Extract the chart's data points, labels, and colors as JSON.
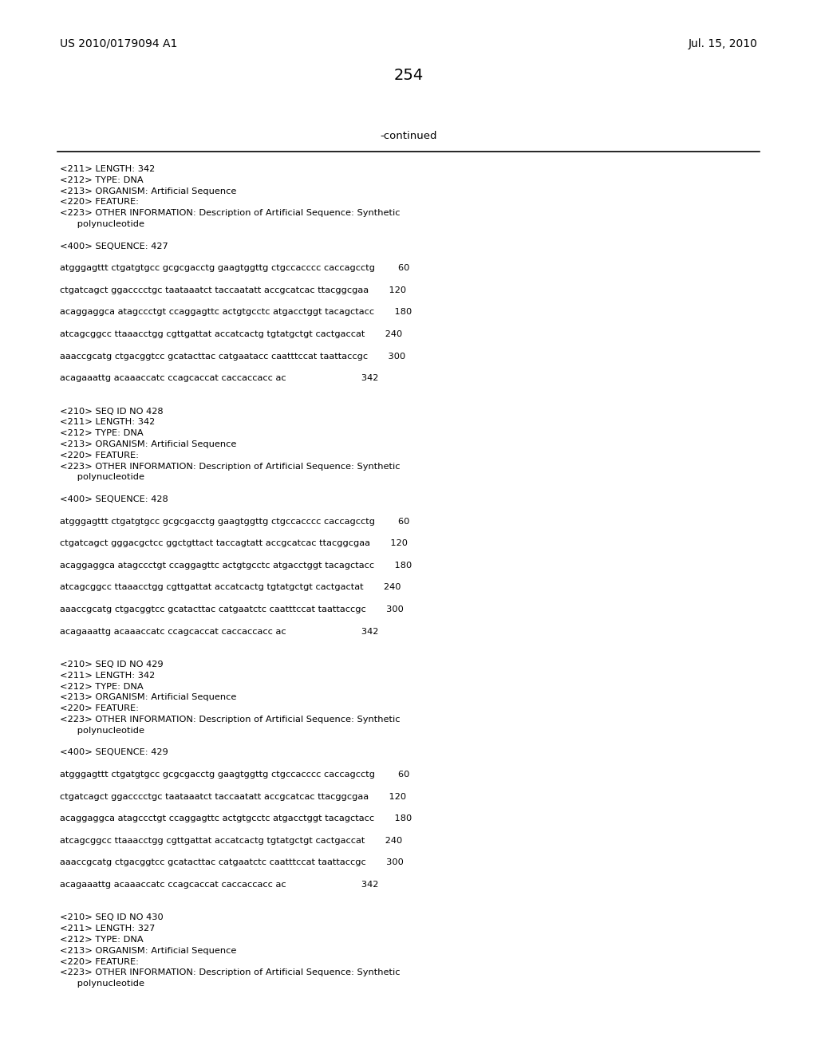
{
  "background_color": "#ffffff",
  "page_number": "254",
  "header_left": "US 2010/0179094 A1",
  "header_right": "Jul. 15, 2010",
  "continued_label": "-continued",
  "content_lines": [
    "<211> LENGTH: 342",
    "<212> TYPE: DNA",
    "<213> ORGANISM: Artificial Sequence",
    "<220> FEATURE:",
    "<223> OTHER INFORMATION: Description of Artificial Sequence: Synthetic",
    "      polynucleotide",
    "",
    "<400> SEQUENCE: 427",
    "",
    "atgggagttt ctgatgtgcc gcgcgacctg gaagtggttg ctgccacccc caccagcctg        60",
    "",
    "ctgatcagct ggacccctgc taataaatct taccaatatt accgcatcac ttacggcgaa       120",
    "",
    "acaggaggca atagccctgt ccaggagttc actgtgcctc atgacctggt tacagctacc       180",
    "",
    "atcagcggcc ttaaacctgg cgttgattat accatcactg tgtatgctgt cactgaccat       240",
    "",
    "aaaccgcatg ctgacggtcc gcatacttac catgaatacc caatttccat taattaccgc       300",
    "",
    "acagaaattg acaaaccatc ccagcaccat caccaccacc ac                          342",
    "",
    "",
    "<210> SEQ ID NO 428",
    "<211> LENGTH: 342",
    "<212> TYPE: DNA",
    "<213> ORGANISM: Artificial Sequence",
    "<220> FEATURE:",
    "<223> OTHER INFORMATION: Description of Artificial Sequence: Synthetic",
    "      polynucleotide",
    "",
    "<400> SEQUENCE: 428",
    "",
    "atgggagttt ctgatgtgcc gcgcgacctg gaagtggttg ctgccacccc caccagcctg        60",
    "",
    "ctgatcagct gggacgctcc ggctgttact taccagtatt accgcatcac ttacggcgaa       120",
    "",
    "acaggaggca atagccctgt ccaggagttc actgtgcctc atgacctggt tacagctacc       180",
    "",
    "atcagcggcc ttaaacctgg cgttgattat accatcactg tgtatgctgt cactgactat       240",
    "",
    "aaaccgcatg ctgacggtcc gcatacttac catgaatctc caatttccat taattaccgc       300",
    "",
    "acagaaattg acaaaccatc ccagcaccat caccaccacc ac                          342",
    "",
    "",
    "<210> SEQ ID NO 429",
    "<211> LENGTH: 342",
    "<212> TYPE: DNA",
    "<213> ORGANISM: Artificial Sequence",
    "<220> FEATURE:",
    "<223> OTHER INFORMATION: Description of Artificial Sequence: Synthetic",
    "      polynucleotide",
    "",
    "<400> SEQUENCE: 429",
    "",
    "atgggagttt ctgatgtgcc gcgcgacctg gaagtggttg ctgccacccc caccagcctg        60",
    "",
    "ctgatcagct ggacccctgc taataaatct taccaatatt accgcatcac ttacggcgaa       120",
    "",
    "acaggaggca atagccctgt ccaggagttc actgtgcctc atgacctggt tacagctacc       180",
    "",
    "atcagcggcc ttaaacctgg cgttgattat accatcactg tgtatgctgt cactgaccat       240",
    "",
    "aaaccgcatg ctgacggtcc gcatacttac catgaatctc caatttccat taattaccgc       300",
    "",
    "acagaaattg acaaaccatc ccagcaccat caccaccacc ac                          342",
    "",
    "",
    "<210> SEQ ID NO 430",
    "<211> LENGTH: 327",
    "<212> TYPE: DNA",
    "<213> ORGANISM: Artificial Sequence",
    "<220> FEATURE:",
    "<223> OTHER INFORMATION: Description of Artificial Sequence: Synthetic",
    "      polynucleotide"
  ],
  "mono_size": 8.2,
  "header_size": 10.0,
  "page_num_size": 14.0,
  "continued_size": 9.5
}
